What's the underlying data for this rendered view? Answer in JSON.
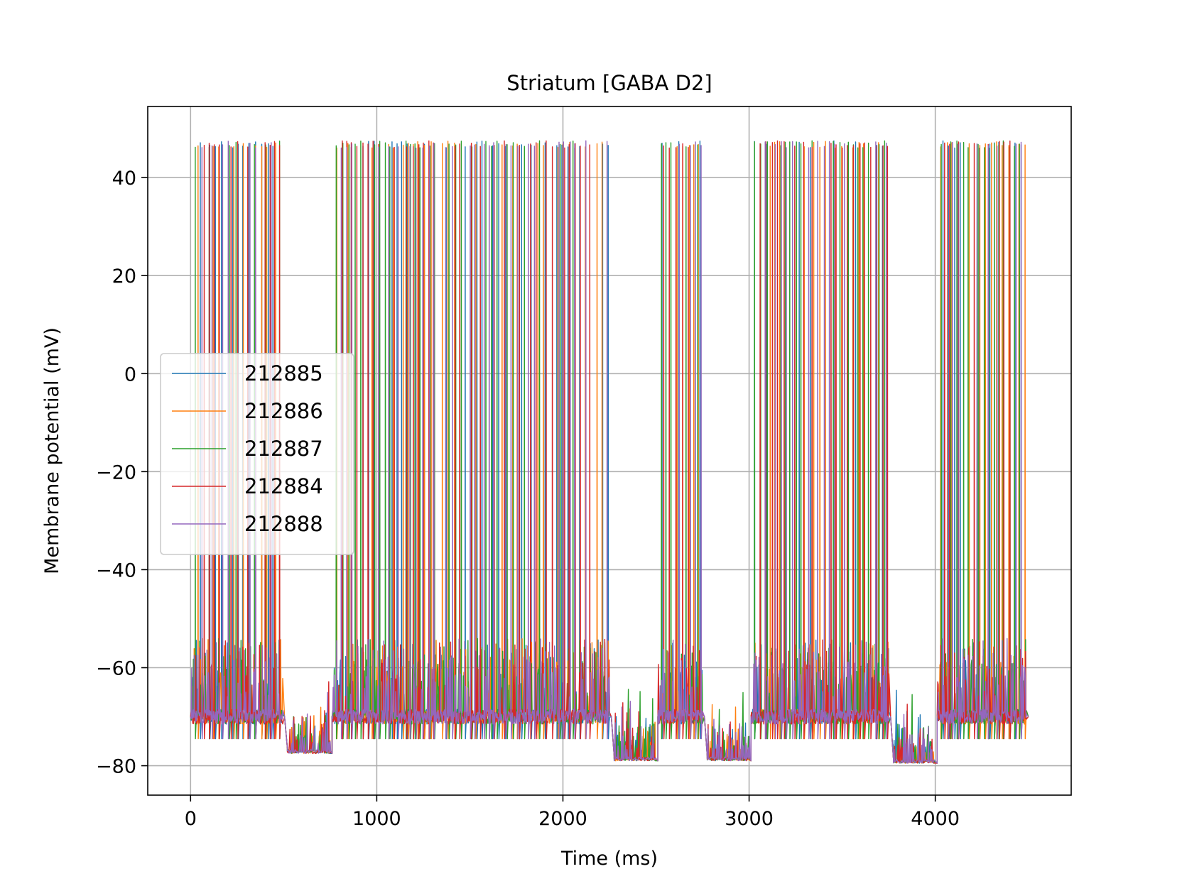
{
  "chart_data": {
    "type": "line",
    "title": "Striatum [GABA D2]",
    "xlabel": "Time (ms)",
    "ylabel": "Membrane potential (mV)",
    "xlim": [
      -230,
      4730
    ],
    "ylim": [
      -86,
      54.5
    ],
    "xticks": [
      0,
      1000,
      2000,
      3000,
      4000
    ],
    "xtick_labels": [
      "0",
      "1000",
      "2000",
      "3000",
      "4000"
    ],
    "yticks": [
      40,
      20,
      0,
      -20,
      -40,
      -60,
      -80
    ],
    "ytick_labels": [
      "40",
      "20",
      "0",
      "−20",
      "−40",
      "−60",
      "−80"
    ],
    "grid": true,
    "legend_position": "center-left",
    "baseline_mv": -70,
    "spike_peak_mv": 47.5,
    "spike_trough_mv": -74.5,
    "segments": [
      {
        "start": 0,
        "end": 505,
        "rest": -70,
        "spiking": true
      },
      {
        "start": 505,
        "end": 760,
        "rest": -77.5,
        "spiking": false
      },
      {
        "start": 760,
        "end": 2260,
        "rest": -70,
        "spiking": true
      },
      {
        "start": 2260,
        "end": 2510,
        "rest": -79,
        "spiking": false
      },
      {
        "start": 2510,
        "end": 2760,
        "rest": -70,
        "spiking": true
      },
      {
        "start": 2760,
        "end": 3010,
        "rest": -79,
        "spiking": false
      },
      {
        "start": 3010,
        "end": 3760,
        "rest": -70,
        "spiking": true
      },
      {
        "start": 3760,
        "end": 4010,
        "rest": -79.5,
        "spiking": false
      },
      {
        "start": 4010,
        "end": 4500,
        "rest": -70,
        "spiking": true
      }
    ],
    "series": [
      {
        "name": "212885",
        "color": "#1f77b4"
      },
      {
        "name": "212886",
        "color": "#ff7f0e"
      },
      {
        "name": "212887",
        "color": "#2ca02c"
      },
      {
        "name": "212884",
        "color": "#d62728"
      },
      {
        "name": "212888",
        "color": "#9467bd"
      }
    ]
  }
}
